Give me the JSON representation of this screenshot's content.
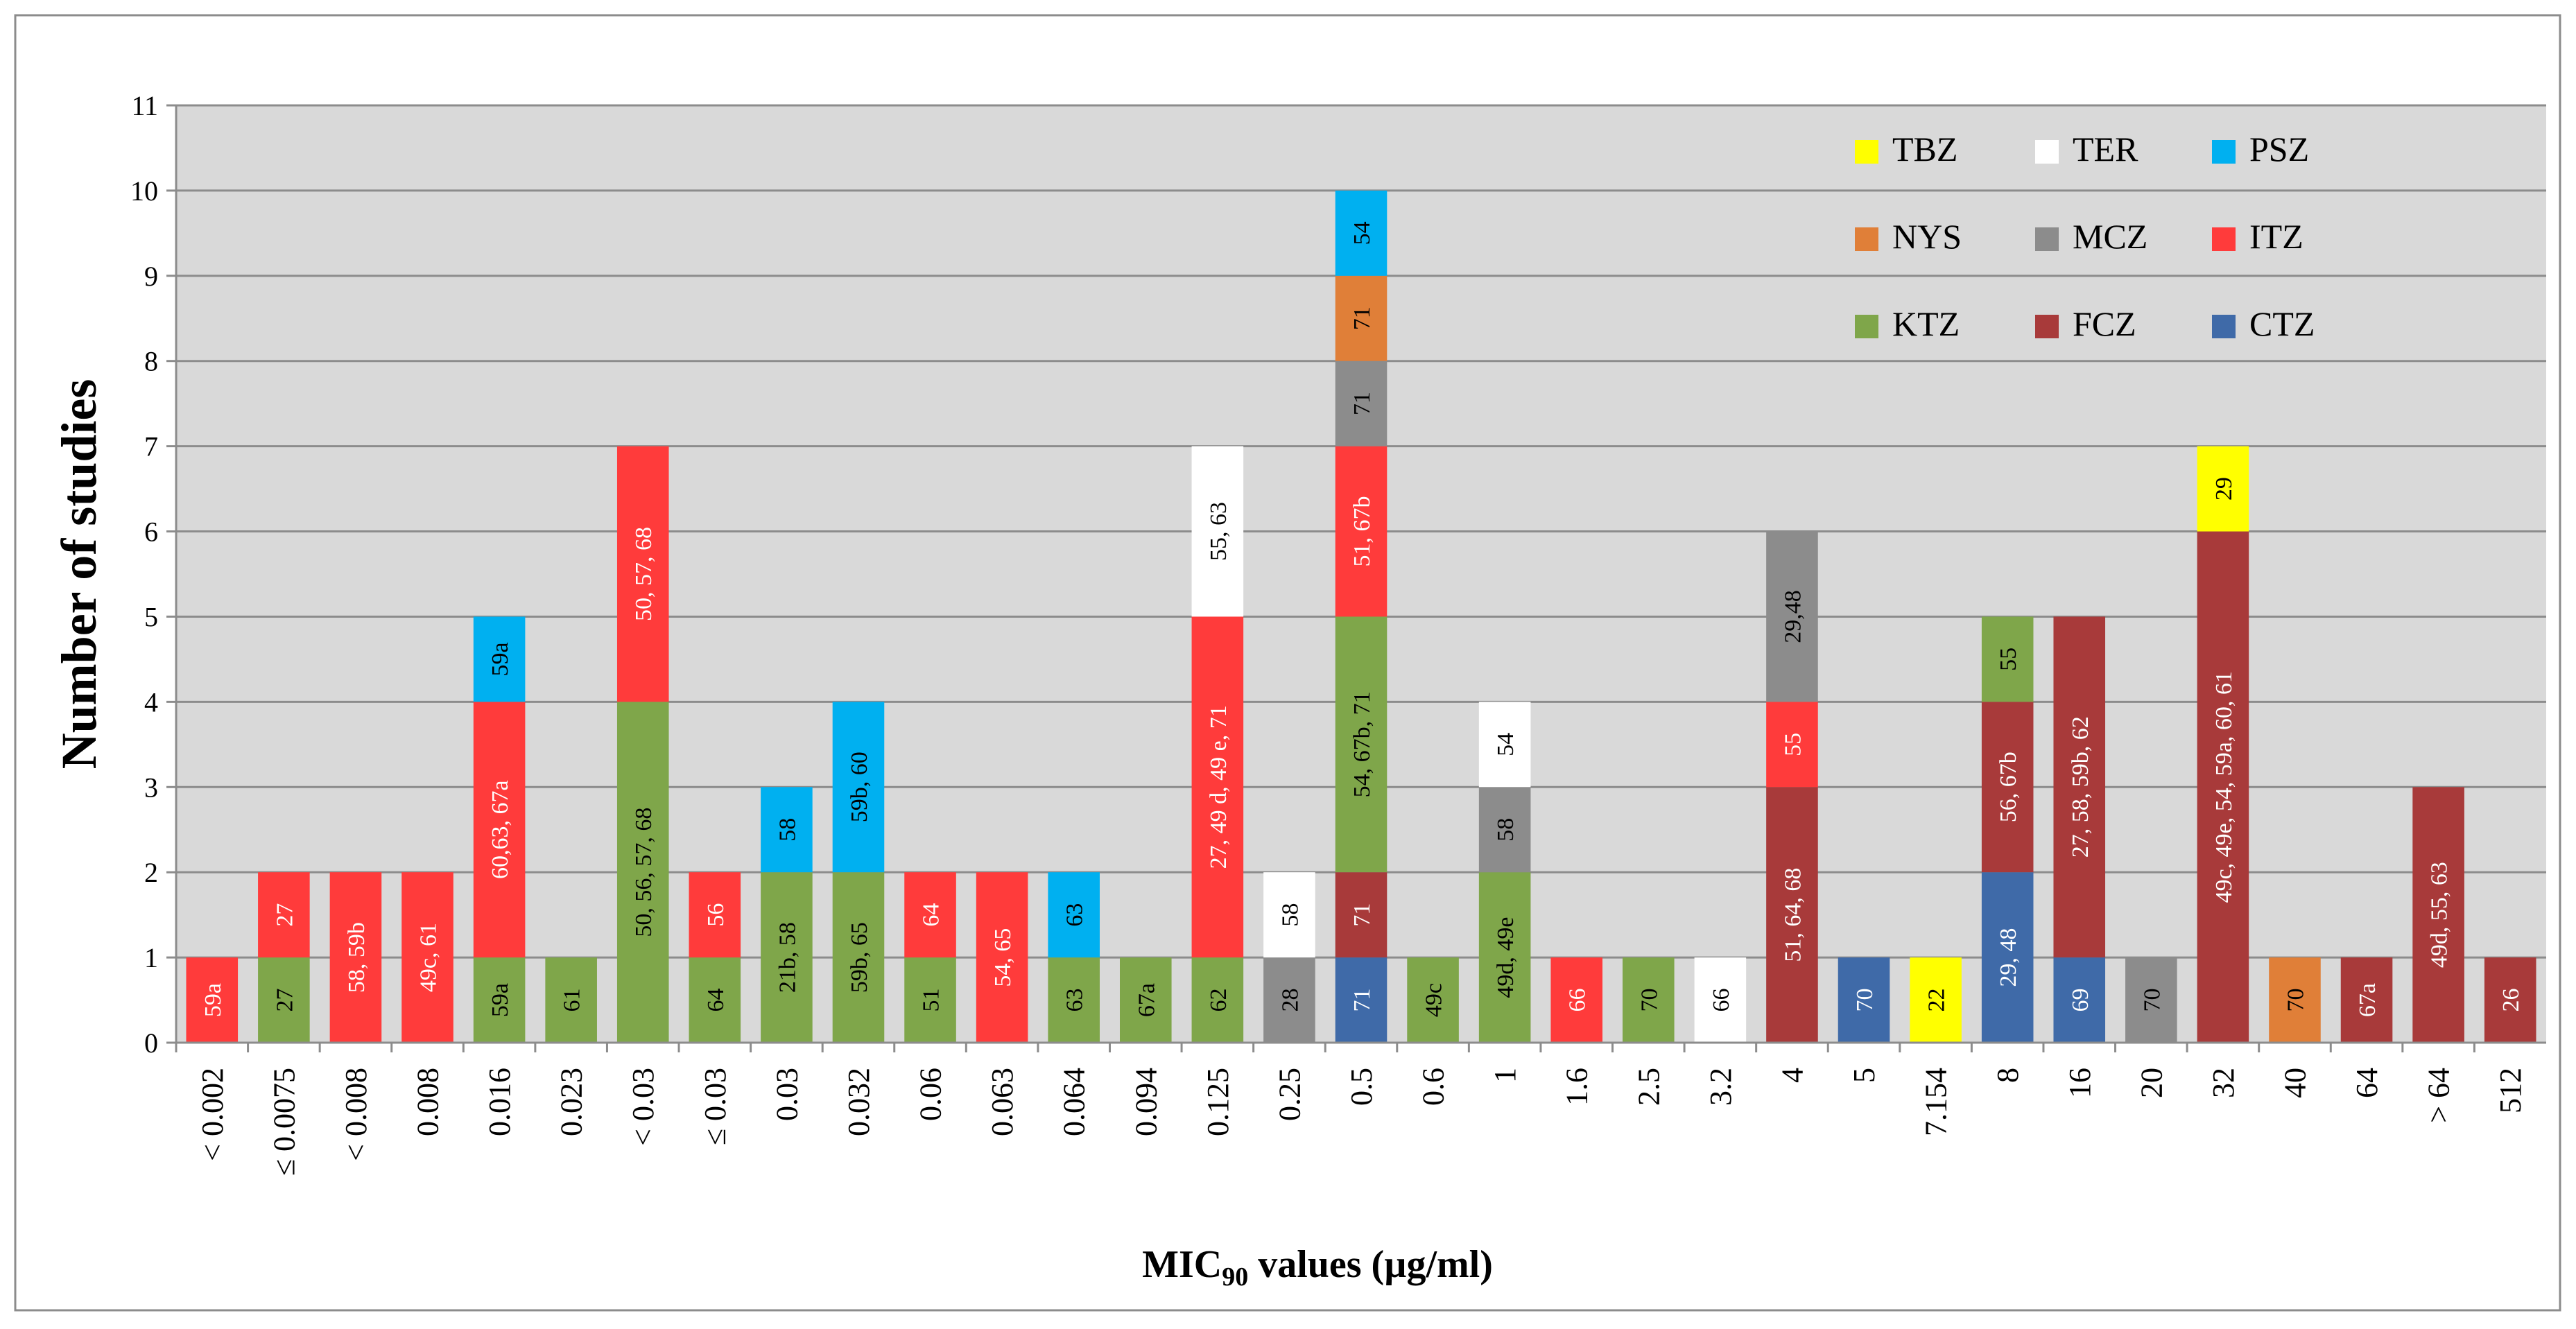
{
  "chart_data": {
    "type": "bar",
    "stacked": true,
    "ylabel": "Number of studies",
    "xlabel_main": "MIC",
    "xlabel_sub": "90",
    "xlabel_rest": " values (µg/ml)",
    "ylim": [
      0,
      11
    ],
    "yticks": [
      0,
      1,
      2,
      3,
      4,
      5,
      6,
      7,
      8,
      9,
      10,
      11
    ],
    "grid": true,
    "legend_position": "top-right",
    "legend": [
      {
        "name": "TBZ",
        "color": "#ffff00"
      },
      {
        "name": "TER",
        "color": "#ffffff"
      },
      {
        "name": "PSZ",
        "color": "#00b0f0"
      },
      {
        "name": "NYS",
        "color": "#e07f38"
      },
      {
        "name": "MCZ",
        "color": "#8c8c8c"
      },
      {
        "name": "ITZ",
        "color": "#ff3b3b"
      },
      {
        "name": "KTZ",
        "color": "#7fa64a"
      },
      {
        "name": "FCZ",
        "color": "#a83a3a"
      },
      {
        "name": "CTZ",
        "color": "#3f6aa8"
      }
    ],
    "categories": [
      "< 0.002",
      "≤ 0.0075",
      "< 0.008",
      "0.008",
      "0.016",
      "0.023",
      "< 0.03",
      "≤ 0.03",
      "0.03",
      "0.032",
      "0.06",
      "0.063",
      "0.064",
      "0.094",
      "0.125",
      "0.25",
      "0.5",
      "0.6",
      "1",
      "1.6",
      "2.5",
      "3.2",
      "4",
      "5",
      "7.154",
      "8",
      "16",
      "20",
      "32",
      "40",
      "64",
      "> 64",
      "512"
    ],
    "stacks": [
      [
        {
          "drug": "ITZ",
          "value": 1,
          "label": "59a"
        }
      ],
      [
        {
          "drug": "KTZ",
          "value": 1,
          "label": "27"
        },
        {
          "drug": "ITZ",
          "value": 1,
          "label": "27"
        }
      ],
      [
        {
          "drug": "ITZ",
          "value": 2,
          "label": "58, 59b"
        }
      ],
      [
        {
          "drug": "ITZ",
          "value": 2,
          "label": "49c, 61"
        }
      ],
      [
        {
          "drug": "KTZ",
          "value": 1,
          "label": "59a"
        },
        {
          "drug": "ITZ",
          "value": 3,
          "label": "60,63, 67a"
        },
        {
          "drug": "PSZ",
          "value": 1,
          "label": "59a"
        }
      ],
      [
        {
          "drug": "KTZ",
          "value": 1,
          "label": "61"
        }
      ],
      [
        {
          "drug": "KTZ",
          "value": 4,
          "label": "50, 56, 57, 68"
        },
        {
          "drug": "ITZ",
          "value": 3,
          "label": "50, 57, 68"
        }
      ],
      [
        {
          "drug": "KTZ",
          "value": 1,
          "label": "64"
        },
        {
          "drug": "ITZ",
          "value": 1,
          "label": "56"
        }
      ],
      [
        {
          "drug": "KTZ",
          "value": 2,
          "label": "21b, 58"
        },
        {
          "drug": "PSZ",
          "value": 1,
          "label": "58"
        }
      ],
      [
        {
          "drug": "KTZ",
          "value": 2,
          "label": "59b, 65"
        },
        {
          "drug": "PSZ",
          "value": 2,
          "label": "59b, 60"
        }
      ],
      [
        {
          "drug": "KTZ",
          "value": 1,
          "label": "51"
        },
        {
          "drug": "ITZ",
          "value": 1,
          "label": "64"
        }
      ],
      [
        {
          "drug": "ITZ",
          "value": 2,
          "label": "54, 65"
        }
      ],
      [
        {
          "drug": "KTZ",
          "value": 1,
          "label": "63"
        },
        {
          "drug": "PSZ",
          "value": 1,
          "label": "63"
        }
      ],
      [
        {
          "drug": "KTZ",
          "value": 1,
          "label": "67a"
        }
      ],
      [
        {
          "drug": "KTZ",
          "value": 1,
          "label": "62"
        },
        {
          "drug": "ITZ",
          "value": 4,
          "label": "27, 49 d, 49 e, 71"
        },
        {
          "drug": "TER",
          "value": 2,
          "label": "55, 63"
        }
      ],
      [
        {
          "drug": "MCZ",
          "value": 1,
          "label": "28"
        },
        {
          "drug": "TER",
          "value": 1,
          "label": "58"
        }
      ],
      [
        {
          "drug": "CTZ",
          "value": 1,
          "label": "71"
        },
        {
          "drug": "FCZ",
          "value": 1,
          "label": "71"
        },
        {
          "drug": "KTZ",
          "value": 3,
          "label": "54, 67b, 71"
        },
        {
          "drug": "ITZ",
          "value": 2,
          "label": "51, 67b"
        },
        {
          "drug": "MCZ",
          "value": 1,
          "label": "71"
        },
        {
          "drug": "NYS",
          "value": 1,
          "label": "71"
        },
        {
          "drug": "PSZ",
          "value": 1,
          "label": "54"
        }
      ],
      [
        {
          "drug": "KTZ",
          "value": 1,
          "label": "49c"
        }
      ],
      [
        {
          "drug": "KTZ",
          "value": 2,
          "label": "49d, 49e"
        },
        {
          "drug": "MCZ",
          "value": 1,
          "label": "58"
        },
        {
          "drug": "TER",
          "value": 1,
          "label": "54"
        }
      ],
      [
        {
          "drug": "ITZ",
          "value": 1,
          "label": "66"
        }
      ],
      [
        {
          "drug": "KTZ",
          "value": 1,
          "label": "70"
        }
      ],
      [
        {
          "drug": "TER",
          "value": 1,
          "label": "66"
        }
      ],
      [
        {
          "drug": "FCZ",
          "value": 3,
          "label": "51, 64, 68"
        },
        {
          "drug": "ITZ",
          "value": 1,
          "label": "55"
        },
        {
          "drug": "MCZ",
          "value": 2,
          "label": "29,48"
        }
      ],
      [
        {
          "drug": "CTZ",
          "value": 1,
          "label": "70"
        }
      ],
      [
        {
          "drug": "TBZ",
          "value": 1,
          "label": "22"
        }
      ],
      [
        {
          "drug": "CTZ",
          "value": 2,
          "label": "29, 48"
        },
        {
          "drug": "FCZ",
          "value": 2,
          "label": "56, 67b"
        },
        {
          "drug": "KTZ",
          "value": 1,
          "label": "55"
        }
      ],
      [
        {
          "drug": "CTZ",
          "value": 1,
          "label": "69"
        },
        {
          "drug": "FCZ",
          "value": 4,
          "label": "27, 58, 59b, 62"
        }
      ],
      [
        {
          "drug": "MCZ",
          "value": 1,
          "label": "70"
        }
      ],
      [
        {
          "drug": "FCZ",
          "value": 6,
          "label": "49c, 49e, 54, 59a, 60, 61"
        },
        {
          "drug": "TBZ",
          "value": 1,
          "label": "29"
        }
      ],
      [
        {
          "drug": "NYS",
          "value": 1,
          "label": "70"
        }
      ],
      [
        {
          "drug": "FCZ",
          "value": 1,
          "label": "67a"
        }
      ],
      [
        {
          "drug": "FCZ",
          "value": 3,
          "label": "49d, 55, 63"
        }
      ],
      [
        {
          "drug": "FCZ",
          "value": 1,
          "label": "26"
        }
      ]
    ]
  }
}
